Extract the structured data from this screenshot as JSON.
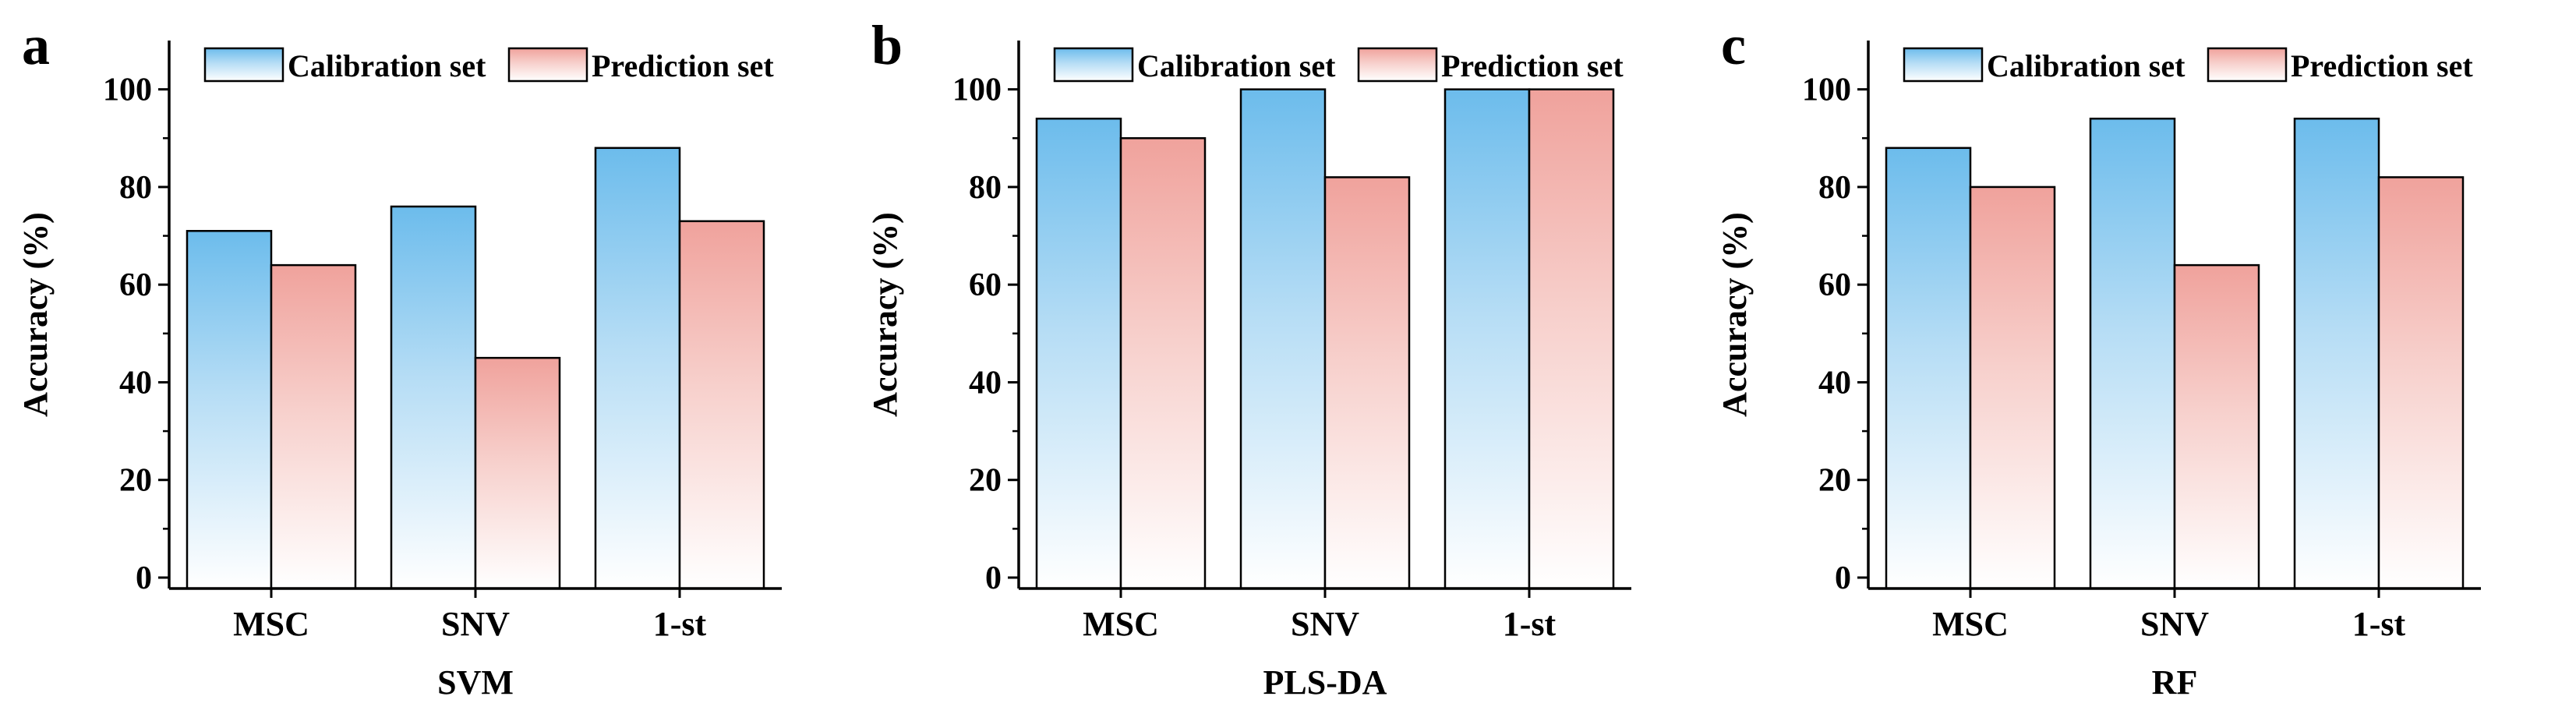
{
  "chart_data": [
    {
      "type": "bar",
      "panel": "a",
      "xlabel": "SVM",
      "ylabel": "Accuracy (%)",
      "ylim": [
        0,
        110
      ],
      "yticks": [
        0,
        20,
        40,
        60,
        80,
        100
      ],
      "categories": [
        "MSC",
        "SNV",
        "1-st"
      ],
      "series": [
        {
          "name": "Calibration set",
          "values": [
            71,
            76,
            88
          ]
        },
        {
          "name": "Prediction set",
          "values": [
            64,
            45,
            73
          ]
        }
      ],
      "legend": "top"
    },
    {
      "type": "bar",
      "panel": "b",
      "xlabel": "PLS-DA",
      "ylabel": "Accuracy (%)",
      "ylim": [
        0,
        110
      ],
      "yticks": [
        0,
        20,
        40,
        60,
        80,
        100
      ],
      "categories": [
        "MSC",
        "SNV",
        "1-st"
      ],
      "series": [
        {
          "name": "Calibration set",
          "values": [
            94,
            100,
            100
          ]
        },
        {
          "name": "Prediction set",
          "values": [
            90,
            82,
            100
          ]
        }
      ],
      "legend": "top"
    },
    {
      "type": "bar",
      "panel": "c",
      "xlabel": "RF",
      "ylabel": "Accuracy (%)",
      "ylim": [
        0,
        110
      ],
      "yticks": [
        0,
        20,
        40,
        60,
        80,
        100
      ],
      "categories": [
        "MSC",
        "SNV",
        "1-st"
      ],
      "series": [
        {
          "name": "Calibration set",
          "values": [
            88,
            94,
            94
          ]
        },
        {
          "name": "Prediction set",
          "values": [
            80,
            64,
            82
          ]
        }
      ],
      "legend": "top"
    }
  ],
  "colors": {
    "calibration_top": "#6cbcec",
    "calibration_bottom": "#ffffff",
    "prediction_top": "#f0a29c",
    "prediction_bottom": "#ffffff",
    "axis": "#000000"
  }
}
